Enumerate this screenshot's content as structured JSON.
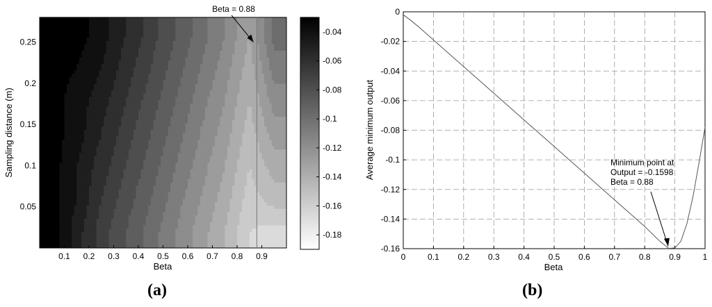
{
  "chart_data": [
    {
      "type": "heatmap",
      "panel_label": "(a)",
      "xlabel": "Beta",
      "ylabel": "Sampling distance (m)",
      "xlim": [
        0,
        1
      ],
      "ylim": [
        0,
        0.28
      ],
      "x_ticks": [
        "0.1",
        "0.2",
        "0.3",
        "0.4",
        "0.5",
        "0.6",
        "0.7",
        "0.8",
        "0.9"
      ],
      "y_ticks": [
        "0.05",
        "0.1",
        "0.15",
        "0.2",
        "0.25"
      ],
      "colorbar": {
        "range": [
          -0.19,
          -0.03
        ],
        "ticks": [
          "-0.04",
          "-0.06",
          "-0.08",
          "-0.1",
          "-0.12",
          "-0.14",
          "-0.16",
          "-0.18"
        ],
        "colormap": "gray (dark = higher output, light = lower output)"
      },
      "x": [
        0.05,
        0.15,
        0.25,
        0.35,
        0.45,
        0.55,
        0.65,
        0.75,
        0.85,
        0.95
      ],
      "y": [
        0.02,
        0.06,
        0.1,
        0.14,
        0.18,
        0.22,
        0.26
      ],
      "z": [
        [
          -0.03,
          -0.05,
          -0.07,
          -0.085,
          -0.1,
          -0.115,
          -0.13,
          -0.145,
          -0.165,
          -0.17
        ],
        [
          -0.03,
          -0.045,
          -0.065,
          -0.08,
          -0.095,
          -0.11,
          -0.125,
          -0.14,
          -0.16,
          -0.15
        ],
        [
          -0.03,
          -0.045,
          -0.06,
          -0.075,
          -0.09,
          -0.105,
          -0.12,
          -0.135,
          -0.155,
          -0.14
        ],
        [
          -0.03,
          -0.04,
          -0.055,
          -0.07,
          -0.085,
          -0.1,
          -0.115,
          -0.13,
          -0.15,
          -0.13
        ],
        [
          -0.03,
          -0.04,
          -0.05,
          -0.065,
          -0.08,
          -0.095,
          -0.11,
          -0.125,
          -0.145,
          -0.12
        ],
        [
          -0.03,
          -0.035,
          -0.045,
          -0.06,
          -0.075,
          -0.09,
          -0.105,
          -0.12,
          -0.14,
          -0.11
        ],
        [
          -0.03,
          -0.03,
          -0.04,
          -0.055,
          -0.07,
          -0.085,
          -0.1,
          -0.115,
          -0.135,
          -0.1
        ]
      ],
      "reference_line": {
        "beta": 0.88
      },
      "annotation": {
        "text": "Beta = 0.88",
        "points_to": {
          "x": 0.88,
          "y": 0.25
        }
      }
    },
    {
      "type": "line",
      "panel_label": "(b)",
      "xlabel": "Beta",
      "ylabel": "Average minimum output",
      "xlim": [
        0,
        1
      ],
      "ylim": [
        -0.16,
        0
      ],
      "grid": true,
      "x_ticks": [
        "0",
        "0.1",
        "0.2",
        "0.3",
        "0.4",
        "0.5",
        "0.6",
        "0.7",
        "0.8",
        "0.9",
        "1"
      ],
      "y_ticks": [
        "0",
        "-0.02",
        "-0.04",
        "-0.06",
        "-0.08",
        "-0.1",
        "-0.12",
        "-0.14",
        "-0.16"
      ],
      "series": [
        {
          "x": [
            0,
            0.02,
            0.05,
            0.1,
            0.15,
            0.2,
            0.25,
            0.3,
            0.35,
            0.4,
            0.45,
            0.5,
            0.55,
            0.6,
            0.65,
            0.7,
            0.75,
            0.8,
            0.85,
            0.88,
            0.9,
            0.92,
            0.94,
            0.96,
            0.98,
            1.0
          ],
          "y": [
            -0.002,
            -0.005,
            -0.01,
            -0.019,
            -0.028,
            -0.037,
            -0.046,
            -0.055,
            -0.064,
            -0.073,
            -0.082,
            -0.091,
            -0.1,
            -0.109,
            -0.118,
            -0.127,
            -0.136,
            -0.145,
            -0.155,
            -0.1598,
            -0.1595,
            -0.155,
            -0.143,
            -0.125,
            -0.102,
            -0.078
          ]
        }
      ],
      "annotation": {
        "lines": [
          "Minimum point at",
          "Output = -0.1598",
          "Beta = 0.88"
        ],
        "points_to": {
          "x": 0.88,
          "y": -0.1598
        }
      }
    }
  ]
}
